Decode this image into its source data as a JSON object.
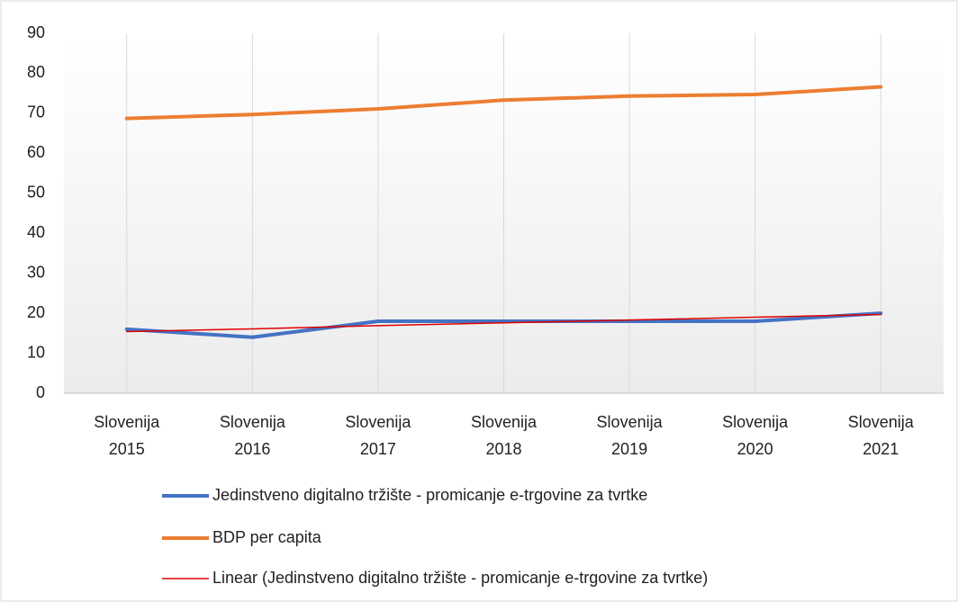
{
  "chart_data": {
    "type": "line",
    "categories": [
      "Slovenija 2015",
      "Slovenija 2016",
      "Slovenija 2017",
      "Slovenija 2018",
      "Slovenija 2019",
      "Slovenija 2020",
      "Slovenija 2021"
    ],
    "series": [
      {
        "name": "Jedinstveno digitalno tržište - promicanje e-trgovine za tvrtke",
        "color": "#4472c4",
        "values": [
          16,
          14,
          18,
          18,
          18,
          18,
          20
        ]
      },
      {
        "name": "BDP per capita",
        "color": "#ed7d31",
        "values": [
          68.7,
          69.7,
          71.1,
          73.3,
          74.3,
          74.7,
          76.6
        ]
      },
      {
        "name": "Linear (Jedinstveno digitalno tržište - promicanje e-trgovine za tvrtke)",
        "color": "#e00000",
        "values": [
          15.4,
          16.1,
          16.9,
          17.6,
          18.3,
          19.0,
          19.7
        ]
      }
    ],
    "ylim": [
      0,
      90
    ],
    "yticks": [
      0,
      10,
      20,
      30,
      40,
      50,
      60,
      70,
      80,
      90
    ],
    "grid": "x",
    "legend": "bottom"
  }
}
